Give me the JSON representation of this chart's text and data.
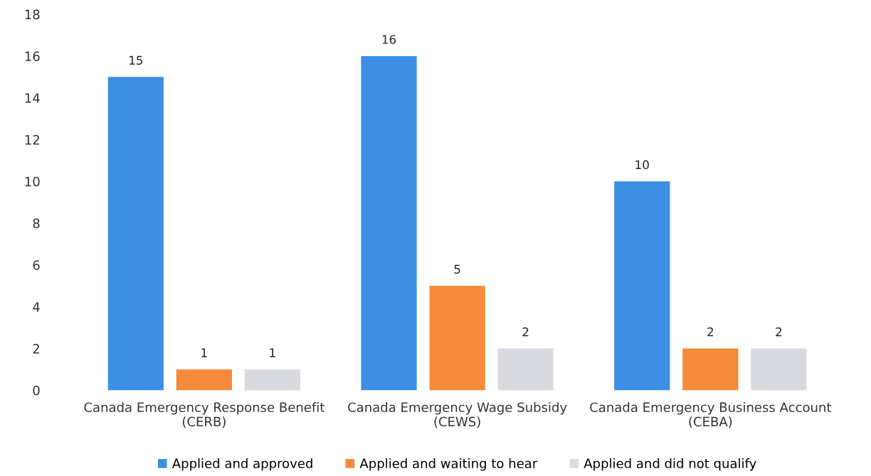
{
  "chart_data": {
    "type": "bar",
    "categories": [
      "Canada Emergency Response Benefit\n(CERB)",
      "Canada Emergency Wage Subsidy\n(CEWS)",
      "Canada Emergency Business Account\n(CEBA)"
    ],
    "series": [
      {
        "name": "Applied and approved",
        "color": "#3d8fe3",
        "values": [
          15,
          16,
          10
        ]
      },
      {
        "name": "Applied and waiting to hear",
        "color": "#f58a3c",
        "values": [
          1,
          5,
          2
        ]
      },
      {
        "name": "Applied and did not qualify",
        "color": "#d9dadf",
        "values": [
          1,
          2,
          2
        ]
      }
    ],
    "ylim": [
      0,
      18
    ],
    "yticks": [
      0,
      2,
      4,
      6,
      8,
      10,
      12,
      14,
      16,
      18
    ],
    "data_labels": true,
    "grid": false,
    "legend": "bottom"
  }
}
